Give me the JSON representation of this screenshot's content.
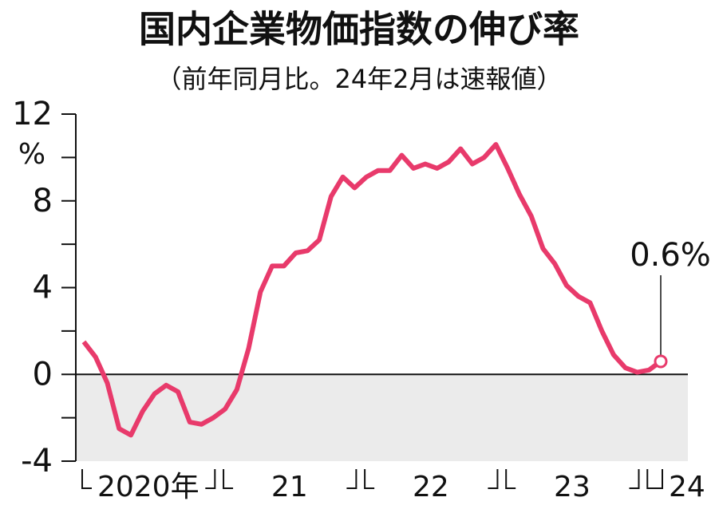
{
  "chart_data": {
    "type": "line",
    "title": "国内企業物価指数の伸び率",
    "subtitle": "（前年同月比。24年2月は速報値）",
    "y_unit": "%",
    "annotation": "0.6%",
    "categories": [
      null,
      null,
      null,
      null,
      null,
      "2020年",
      null,
      null,
      null,
      null,
      null,
      null,
      null,
      null,
      null,
      null,
      null,
      "21",
      null,
      null,
      null,
      null,
      null,
      null,
      null,
      null,
      null,
      null,
      null,
      "22",
      null,
      null,
      null,
      null,
      null,
      null,
      null,
      null,
      null,
      null,
      null,
      "23",
      null,
      null,
      null,
      null,
      null,
      null,
      null,
      "24"
    ],
    "series": [
      {
        "color": "#e83a6b",
        "values": [
          1.5,
          0.8,
          -0.4,
          -2.5,
          -2.8,
          -1.7,
          -0.9,
          -0.5,
          -0.8,
          -2.2,
          -2.3,
          -2.0,
          -1.6,
          -0.7,
          1.2,
          3.8,
          5.0,
          5.0,
          5.6,
          5.7,
          6.2,
          8.2,
          9.1,
          8.6,
          9.1,
          9.4,
          9.4,
          10.1,
          9.5,
          9.7,
          9.5,
          9.8,
          10.4,
          9.7,
          10.0,
          10.6,
          9.5,
          8.3,
          7.3,
          5.8,
          5.1,
          4.1,
          3.6,
          3.3,
          2.0,
          0.9,
          0.3,
          0.1,
          0.2,
          0.6
        ]
      }
    ],
    "ylim": [
      -4,
      12
    ],
    "yticks": [
      -4,
      0,
      4,
      8,
      12
    ],
    "yminorticks": [
      -2,
      2,
      6,
      10
    ],
    "negative_shade": "#ebebeb"
  }
}
